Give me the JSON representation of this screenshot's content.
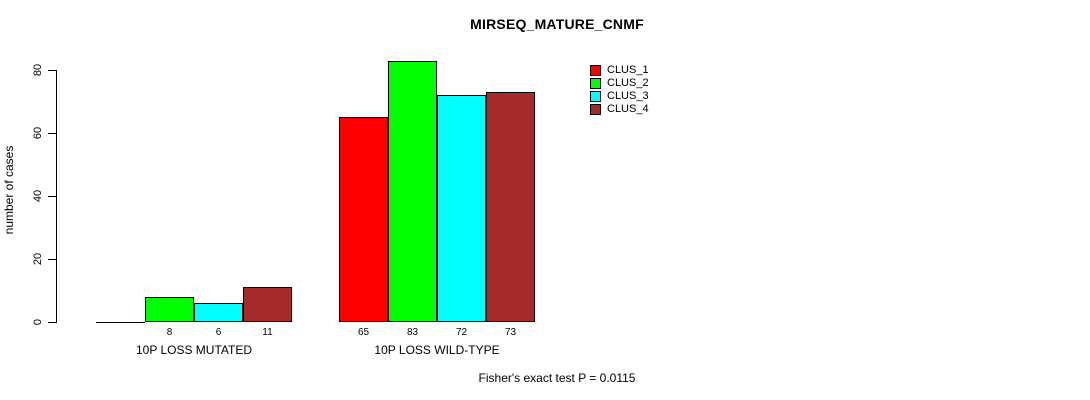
{
  "chart_data": {
    "type": "bar",
    "title": "MIRSEQ_MATURE_CNMF",
    "ylabel": "number of cases",
    "xlabel": "",
    "categories": [
      "10P LOSS MUTATED",
      "10P LOSS WILD-TYPE"
    ],
    "series": [
      {
        "name": "CLUS_1",
        "color": "#FF0000",
        "values": [
          0,
          65
        ]
      },
      {
        "name": "CLUS_2",
        "color": "#00FF00",
        "values": [
          8,
          83
        ]
      },
      {
        "name": "CLUS_3",
        "color": "#00FFFF",
        "values": [
          6,
          72
        ]
      },
      {
        "name": "CLUS_4",
        "color": "#A52A2A",
        "values": [
          11,
          73
        ]
      }
    ],
    "yticks": [
      0,
      20,
      40,
      60,
      80
    ],
    "ylim": [
      0,
      83
    ],
    "grid": false,
    "legend_position": "top-right",
    "bar_value_labels": "shown under each bar when value > 0",
    "annotation": "Fisher's exact test P = 0.0115"
  }
}
